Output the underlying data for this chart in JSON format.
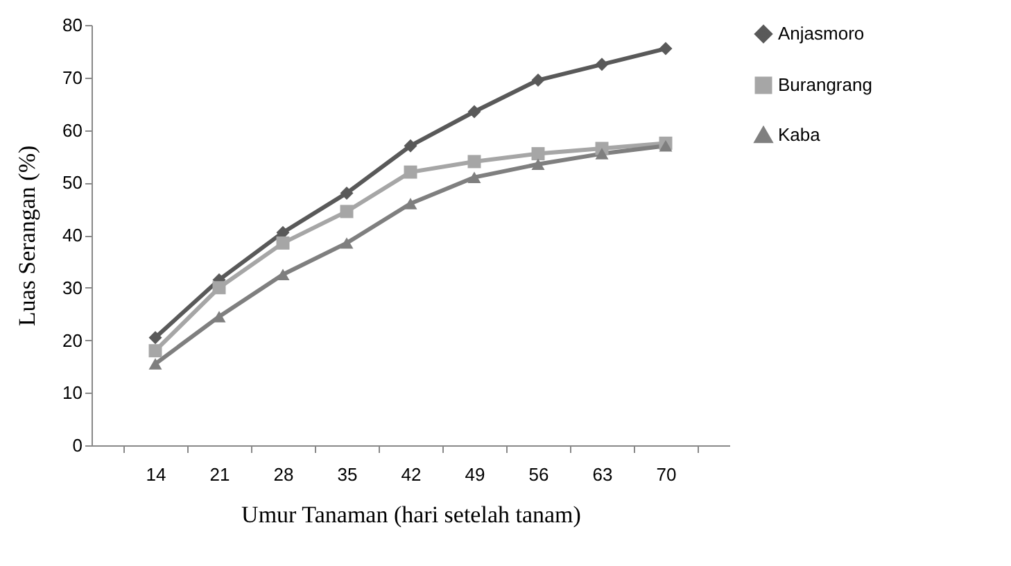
{
  "chart_data": {
    "type": "line",
    "xlabel": "Umur Tanaman (hari setelah tanam)",
    "ylabel": "Luas Serangan (%)",
    "categories": [
      "14",
      "21",
      "28",
      "35",
      "42",
      "49",
      "56",
      "63",
      "70"
    ],
    "series": [
      {
        "name": "Anjasmoro",
        "color": "#595959",
        "marker": "diamond",
        "values": [
          20.5,
          31.5,
          40.5,
          48,
          57,
          63.5,
          69.5,
          72.5,
          75.5
        ]
      },
      {
        "name": "Burangrang",
        "color": "#a6a6a6",
        "marker": "square",
        "values": [
          18,
          30,
          38.5,
          44.5,
          52,
          54,
          55.5,
          56.5,
          57.5
        ]
      },
      {
        "name": "Kaba",
        "color": "#7f7f7f",
        "marker": "triangle",
        "values": [
          15.5,
          24.5,
          32.5,
          38.5,
          46,
          51,
          53.5,
          55.5,
          57
        ]
      }
    ],
    "ylim": [
      0,
      80
    ],
    "yticks": [
      0,
      10,
      20,
      30,
      40,
      50,
      60,
      70,
      80
    ],
    "grid": false,
    "legend": "right"
  }
}
